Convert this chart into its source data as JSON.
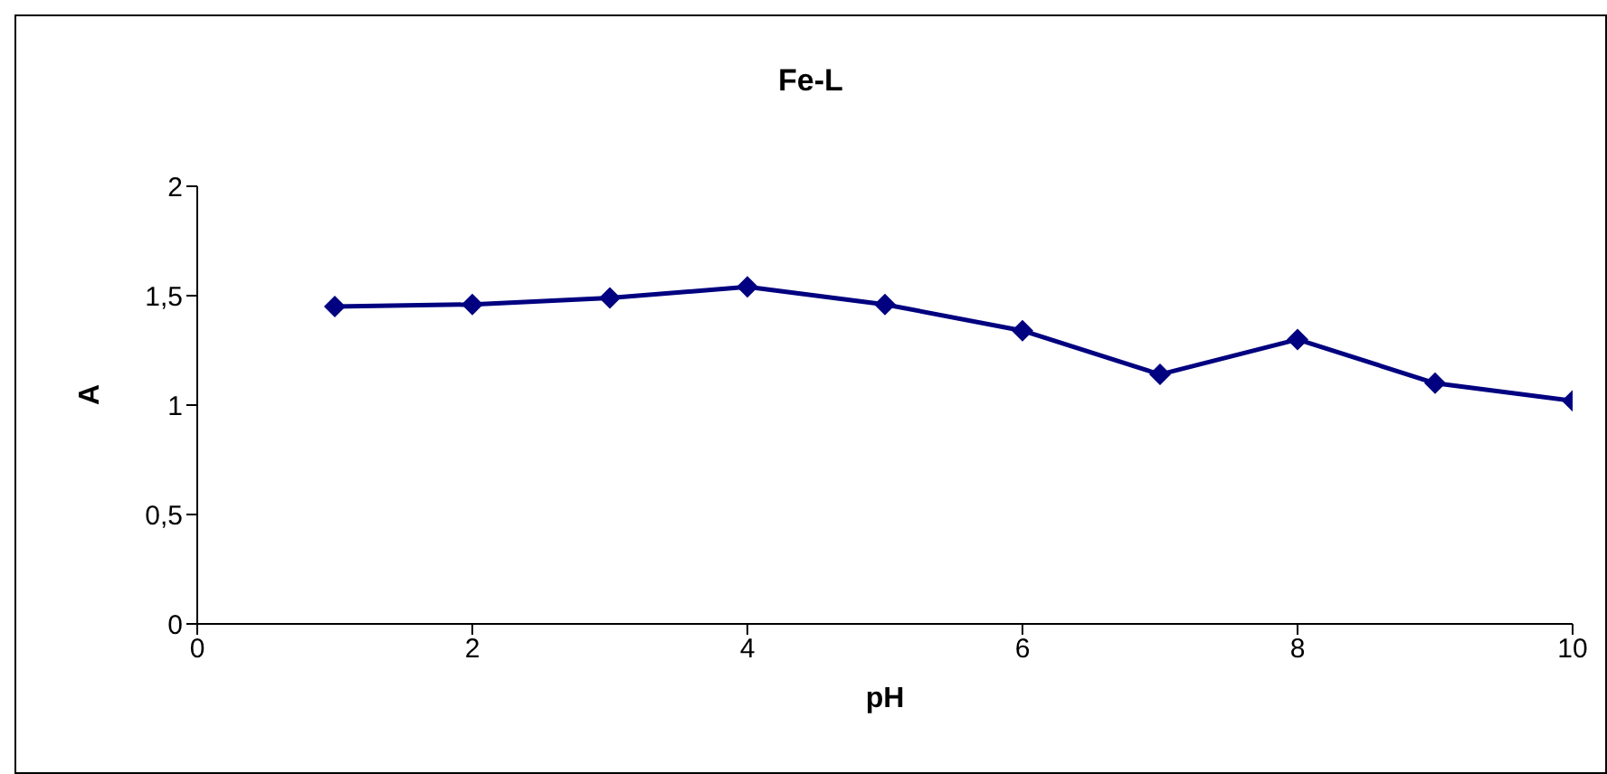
{
  "chart_data": {
    "type": "line",
    "title": "Fe-L",
    "xlabel": "pH",
    "ylabel": "A",
    "x": [
      1,
      2,
      3,
      4,
      5,
      6,
      7,
      8,
      9,
      10
    ],
    "series": [
      {
        "color": "#000080",
        "values": [
          1.45,
          1.46,
          1.49,
          1.54,
          1.46,
          1.34,
          1.14,
          1.3,
          1.1,
          1.02
        ]
      }
    ],
    "xlim": [
      0,
      10
    ],
    "xticks": [
      0,
      2,
      4,
      6,
      8,
      10
    ],
    "ylim": [
      0,
      2
    ],
    "yticks": [
      0,
      {
        "value": 0.5,
        "label": "0,5"
      },
      1,
      {
        "value": 1.5,
        "label": "1,5"
      },
      2
    ],
    "grid": false,
    "legend": false,
    "marker": "diamond",
    "line_style": "solid"
  }
}
